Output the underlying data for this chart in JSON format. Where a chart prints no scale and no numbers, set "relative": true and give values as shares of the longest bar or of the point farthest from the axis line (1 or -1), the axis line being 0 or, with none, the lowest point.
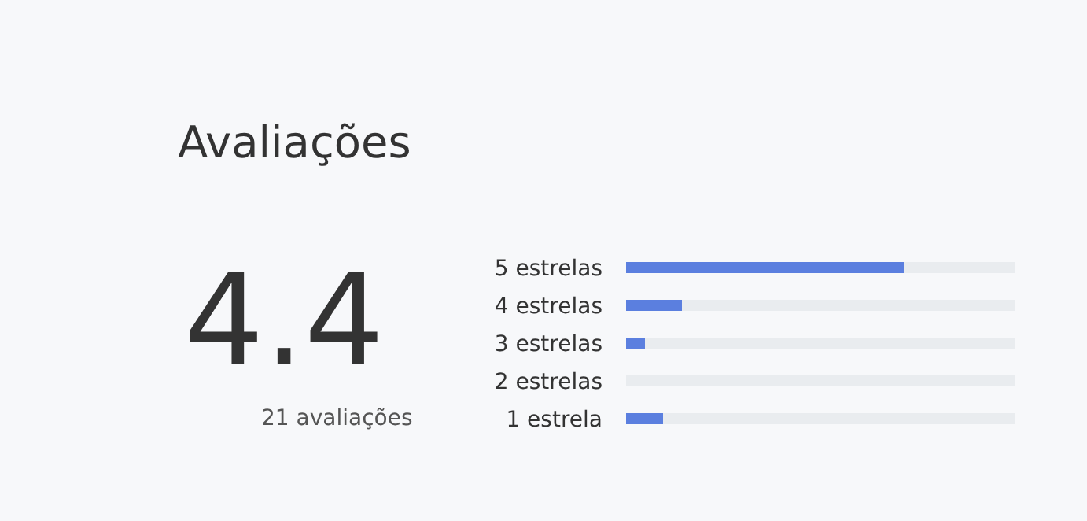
{
  "chart_data": {
    "type": "bar",
    "orientation": "horizontal",
    "stacked": true,
    "relative": true,
    "title": "Avaliações",
    "categories": [
      "5 estrelas",
      "4 estrelas",
      "3 estrelas",
      "2 estrelas",
      "1 estrela"
    ],
    "series": [
      {
        "color": "#5b7fdf",
        "values": [
          0.714,
          0.143,
          0.048,
          0,
          0.095
        ]
      },
      {
        "color": "#e9ecef",
        "values": [
          0.286,
          0.857,
          0.952,
          1,
          0.905
        ]
      }
    ],
    "annotations": [
      "4.4",
      "21 avaliações"
    ],
    "tick_labels": "y",
    "grid": false
  }
}
